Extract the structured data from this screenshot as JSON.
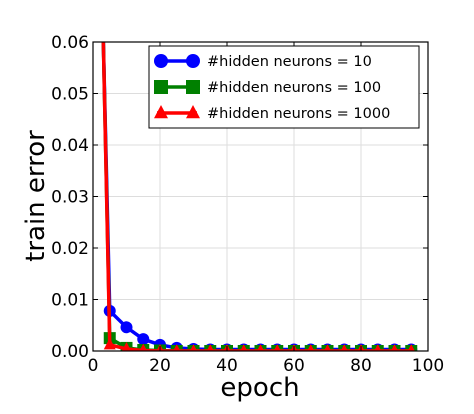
{
  "chart_data": {
    "type": "line",
    "title": "",
    "xlabel": "epoch",
    "ylabel": "train error",
    "xlim": [
      0,
      100
    ],
    "ylim": [
      0,
      0.06
    ],
    "x_ticks": [
      0,
      20,
      40,
      60,
      80,
      100
    ],
    "x_tick_labels": [
      "0",
      "20",
      "40",
      "60",
      "80",
      "100"
    ],
    "y_ticks": [
      0,
      0.01,
      0.02,
      0.03,
      0.04,
      0.05,
      0.06
    ],
    "y_tick_labels": [
      "0.00",
      "0.01",
      "0.02",
      "0.03",
      "0.04",
      "0.05",
      "0.06"
    ],
    "grid": true,
    "legend_position": "top-right",
    "series": [
      {
        "name": "#hidden neurons = 10",
        "color": "#0000ff",
        "marker": "circle",
        "x": [
          3,
          5,
          10,
          15,
          20,
          25,
          30,
          35,
          40,
          45,
          50,
          55,
          60,
          65,
          70,
          75,
          80,
          85,
          90,
          95
        ],
        "y": [
          0.0625,
          0.0078,
          0.0046,
          0.0023,
          0.0012,
          0.0006,
          0.0004,
          0.0003,
          0.0003,
          0.0003,
          0.0003,
          0.0003,
          0.0003,
          0.0003,
          0.0003,
          0.0003,
          0.0003,
          0.0003,
          0.0003,
          0.0003
        ]
      },
      {
        "name": "#hidden neurons = 100",
        "color": "#008000",
        "marker": "square",
        "x": [
          3,
          5,
          10,
          15,
          20,
          25,
          30,
          35,
          40,
          45,
          50,
          55,
          60,
          65,
          70,
          75,
          80,
          85,
          90,
          95
        ],
        "y": [
          0.0625,
          0.0025,
          0.0006,
          0.0002,
          0.0001,
          0.0,
          0.0,
          0.0,
          0.0,
          0.0,
          0.0,
          0.0,
          0.0,
          0.0,
          0.0,
          0.0,
          0.0,
          0.0,
          0.0,
          0.0
        ]
      },
      {
        "name": "#hidden neurons = 1000",
        "color": "#ff0000",
        "marker": "triangle",
        "x": [
          3,
          5,
          10,
          15,
          20,
          25,
          30,
          35,
          40,
          45,
          50,
          55,
          60,
          65,
          70,
          75,
          80,
          85,
          90,
          95
        ],
        "y": [
          0.0625,
          0.0012,
          0.0004,
          0.0001,
          0.0,
          0.0,
          0.0,
          0.0,
          0.0,
          0.0,
          0.0,
          0.0,
          0.0,
          0.0,
          0.0,
          0.0,
          0.0,
          0.0,
          0.0,
          0.0
        ]
      }
    ]
  }
}
